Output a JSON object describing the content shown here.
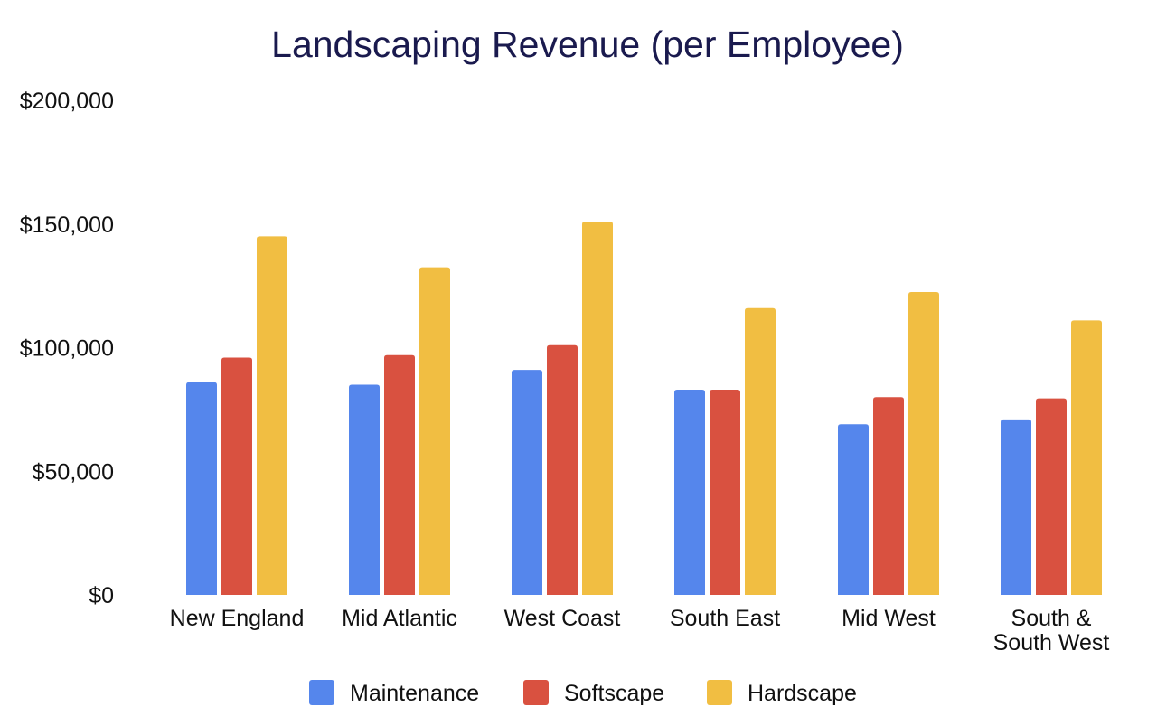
{
  "chart_data": {
    "type": "bar",
    "title": "Landscaping Revenue (per Employee)",
    "xlabel": "",
    "ylabel": "",
    "ylim": [
      0,
      200000
    ],
    "y_ticks": [
      {
        "value": 0,
        "label": "$0"
      },
      {
        "value": 50000,
        "label": "$50,000"
      },
      {
        "value": 100000,
        "label": "$100,000"
      },
      {
        "value": 150000,
        "label": "$150,000"
      },
      {
        "value": 200000,
        "label": "$200,000"
      }
    ],
    "categories": [
      [
        "New England"
      ],
      [
        "Mid Atlantic"
      ],
      [
        "West Coast"
      ],
      [
        "South East"
      ],
      [
        "Mid West"
      ],
      [
        "South &",
        "South West"
      ]
    ],
    "series": [
      {
        "name": "Maintenance",
        "color": "#5586ec",
        "values": [
          86000,
          85000,
          91000,
          83000,
          69000,
          71000
        ]
      },
      {
        "name": "Softscape",
        "color": "#d95140",
        "values": [
          96000,
          97000,
          101000,
          83000,
          80000,
          79500
        ]
      },
      {
        "name": "Hardscape",
        "color": "#f1be42",
        "values": [
          145000,
          132500,
          151000,
          116000,
          122500,
          111000
        ]
      }
    ],
    "grid": false,
    "legend_position": "bottom"
  }
}
